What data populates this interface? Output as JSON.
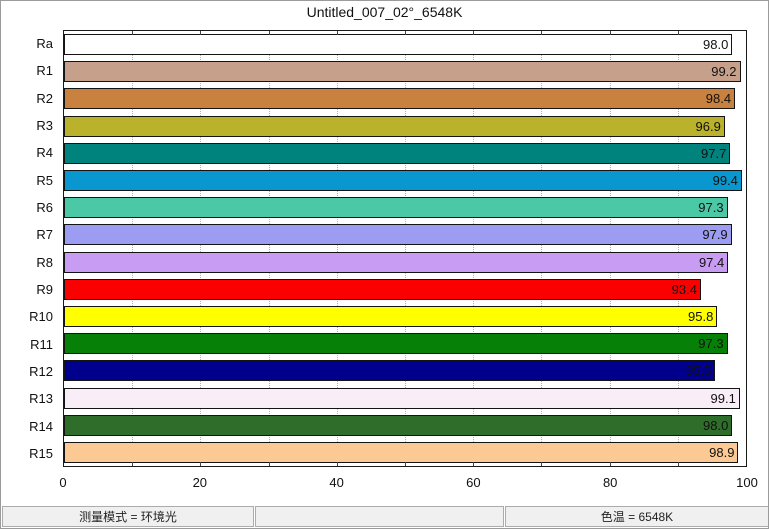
{
  "window": {
    "title": "Untitled_007_02°_6548K"
  },
  "chart_data": {
    "type": "bar",
    "orientation": "horizontal",
    "title": "Untitled_007_02°_6548K",
    "categories": [
      "Ra",
      "R1",
      "R2",
      "R3",
      "R4",
      "R5",
      "R6",
      "R7",
      "R8",
      "R9",
      "R10",
      "R11",
      "R12",
      "R13",
      "R14",
      "R15"
    ],
    "values": [
      98.0,
      99.2,
      98.4,
      96.9,
      97.7,
      99.4,
      97.3,
      97.9,
      97.4,
      93.4,
      95.8,
      97.3,
      95.5,
      99.1,
      98.0,
      98.9
    ],
    "value_labels": [
      "98.0",
      "99.2",
      "98.4",
      "96.9",
      "97.7",
      "99.4",
      "97.3",
      "97.9",
      "97.4",
      "93.4",
      "95.8",
      "97.3",
      "95.5",
      "99.1",
      "98.0",
      "98.9"
    ],
    "bar_colors": [
      "#ffffff",
      "#c7a08c",
      "#c8813e",
      "#b9b22a",
      "#00827d",
      "#0897ce",
      "#4bc8a6",
      "#9c9cf2",
      "#c89cf2",
      "#fa0000",
      "#ffff00",
      "#068006",
      "#00008c",
      "#f9eef7",
      "#2e6e2a",
      "#fbc993"
    ],
    "xlim": [
      0,
      100
    ],
    "x_ticks": [
      0,
      20,
      40,
      60,
      80,
      100
    ],
    "x_minor_grid_step": 10,
    "grid": "dotted vertical every 10",
    "legend": "none"
  },
  "status_bar": {
    "left": "测量模式 = 环境光",
    "middle": "",
    "right": "色温 = 6548K"
  }
}
